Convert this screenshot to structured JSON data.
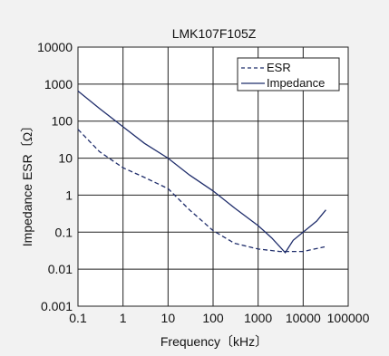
{
  "chart_data": {
    "type": "line",
    "title": "LMK107F105Z",
    "xlabel": "Frequency〔kHz〕",
    "ylabel": "Impedance ESR〔Ω〕",
    "x_scale": "log",
    "y_scale": "log",
    "xlim": [
      0.1,
      100000
    ],
    "ylim": [
      0.001,
      10000
    ],
    "grid": true,
    "legend_position": "top-right",
    "x_ticks": [
      "0.1",
      "1",
      "10",
      "100",
      "1000",
      "10000",
      "100000"
    ],
    "y_ticks": [
      "10000",
      "1000",
      "100",
      "10",
      "1",
      "0.1",
      "0.01",
      "0.001"
    ],
    "series": [
      {
        "name": "ESR",
        "style": "dashed",
        "color": "#1f2d6b",
        "x": [
          0.1,
          0.3,
          1,
          3,
          10,
          30,
          100,
          300,
          1000,
          3000,
          10000,
          30000
        ],
        "y": [
          60,
          15,
          5.5,
          3,
          1.5,
          0.4,
          0.11,
          0.05,
          0.035,
          0.03,
          0.03,
          0.04
        ]
      },
      {
        "name": "Impedance",
        "style": "solid",
        "color": "#1f2d6b",
        "x": [
          0.1,
          0.3,
          1,
          3,
          10,
          30,
          100,
          300,
          1000,
          2000,
          4000,
          6000,
          10000,
          20000,
          32000
        ],
        "y": [
          650,
          220,
          70,
          25,
          10,
          3.5,
          1.3,
          0.45,
          0.15,
          0.07,
          0.028,
          0.06,
          0.1,
          0.2,
          0.4
        ]
      }
    ]
  }
}
